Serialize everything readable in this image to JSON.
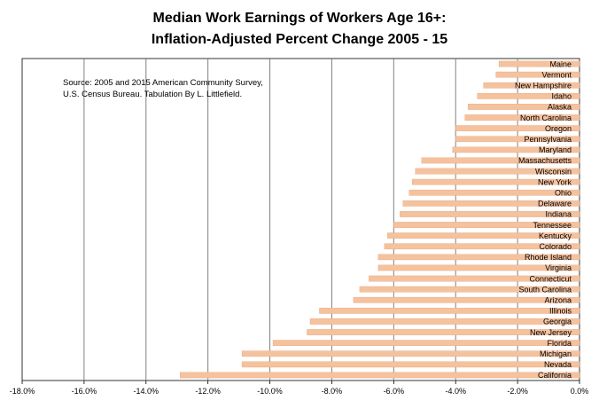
{
  "chart_data": {
    "type": "bar",
    "orientation": "horizontal",
    "title_lines": [
      "Median Work Earnings of Workers Age 16+:",
      "Inflation-Adjusted Percent Change 2005 - 15"
    ],
    "source_lines": [
      "Source:  2005 and 2015 American Community Survey,",
      "U.S. Census Bureau.  Tabulation By L. Littlefield."
    ],
    "categories": [
      "Maine",
      "Vermont",
      "New Hampshire",
      "Idaho",
      "Alaska",
      "North Carolina",
      "Oregon",
      "Pennsylvania",
      "Maryland",
      "Massachusetts",
      "Wisconsin",
      "New York",
      "Ohio",
      "Delaware",
      "Indiana",
      "Tennessee",
      "Kentucky",
      "Colorado",
      "Rhode Island",
      "Virginia",
      "Connecticut",
      "South Carolina",
      "Arizona",
      "Illinois",
      "Georgia",
      "New Jersey",
      "Florida",
      "Michigan",
      "Nevada",
      "California"
    ],
    "values": [
      -2.6,
      -2.7,
      -3.1,
      -3.3,
      -3.6,
      -3.7,
      -4.0,
      -4.0,
      -4.1,
      -5.1,
      -5.3,
      -5.4,
      -5.5,
      -5.7,
      -5.8,
      -6.0,
      -6.2,
      -6.3,
      -6.5,
      -6.5,
      -6.8,
      -7.1,
      -7.3,
      -8.4,
      -8.7,
      -8.8,
      -9.9,
      -10.9,
      -10.9,
      -12.9
    ],
    "xlim": [
      -18,
      0
    ],
    "x_ticks": [
      -18,
      -16,
      -14,
      -12,
      -10,
      -8,
      -6,
      -4,
      -2,
      0
    ],
    "x_tick_labels": [
      "-18.0%",
      "-16.0%",
      "-14.0%",
      "-12.0%",
      "-10.0%",
      "-8.0%",
      "-6.0%",
      "-4.0%",
      "-2.0%",
      "0.0%"
    ],
    "grid": "vertical",
    "bar_color": "#f5c29e",
    "bar_edge_color": "#e8a77f",
    "grid_color": "#808080",
    "xlabel": "",
    "ylabel": ""
  }
}
